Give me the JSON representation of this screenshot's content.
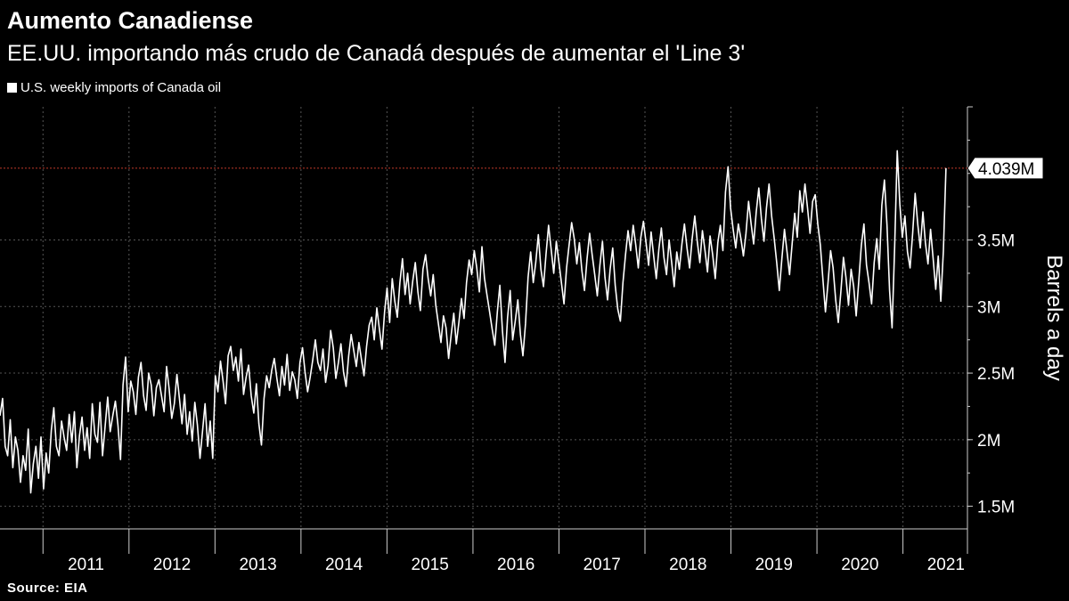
{
  "title": "Aumento Canadiense",
  "subtitle": "EE.UU. importando más crudo de Canadá después de aumentar el 'Line 3'",
  "source": "Source: EIA",
  "colors": {
    "background": "#000000",
    "line": "#ffffff",
    "reference": "#c0392b",
    "grid": "#555555"
  },
  "chart_data": {
    "type": "line",
    "series": [
      {
        "name": "U.S. weekly imports of Canada oil",
        "x_start_year": 2010.5,
        "x_end_year": 2021.5,
        "values": [
          2.18,
          2.31,
          1.95,
          1.88,
          2.15,
          1.79,
          2.02,
          1.92,
          1.68,
          1.88,
          1.77,
          2.08,
          1.6,
          1.82,
          1.95,
          1.71,
          2.02,
          1.63,
          1.9,
          1.75,
          2.07,
          2.24,
          1.95,
          1.88,
          2.14,
          2.02,
          1.92,
          2.19,
          1.98,
          2.21,
          1.79,
          2.03,
          2.17,
          1.92,
          2.09,
          1.86,
          2.27,
          2.04,
          1.98,
          2.28,
          1.88,
          2.1,
          2.32,
          2.06,
          2.18,
          2.29,
          2.11,
          1.85,
          2.41,
          2.62,
          2.21,
          2.44,
          2.36,
          2.19,
          2.47,
          2.58,
          2.33,
          2.22,
          2.5,
          2.41,
          2.18,
          2.39,
          2.45,
          2.33,
          2.21,
          2.55,
          2.38,
          2.16,
          2.27,
          2.49,
          2.31,
          2.12,
          2.34,
          2.04,
          2.21,
          1.99,
          2.28,
          2.11,
          1.86,
          2.06,
          2.27,
          1.95,
          2.14,
          1.86,
          2.48,
          2.36,
          2.59,
          2.44,
          2.27,
          2.63,
          2.7,
          2.52,
          2.62,
          2.44,
          2.68,
          2.34,
          2.47,
          2.56,
          2.33,
          2.2,
          2.42,
          2.12,
          1.96,
          2.31,
          2.48,
          2.39,
          2.52,
          2.61,
          2.46,
          2.33,
          2.55,
          2.41,
          2.64,
          2.37,
          2.51,
          2.45,
          2.31,
          2.58,
          2.69,
          2.51,
          2.36,
          2.47,
          2.6,
          2.75,
          2.58,
          2.52,
          2.68,
          2.43,
          2.56,
          2.82,
          2.69,
          2.46,
          2.58,
          2.72,
          2.51,
          2.4,
          2.63,
          2.79,
          2.67,
          2.55,
          2.73,
          2.6,
          2.48,
          2.7,
          2.86,
          2.92,
          2.75,
          2.99,
          2.83,
          2.68,
          2.96,
          3.14,
          2.88,
          3.21,
          3.04,
          2.92,
          3.18,
          3.36,
          3.09,
          3.25,
          3.02,
          3.19,
          3.33,
          3.11,
          2.97,
          3.28,
          3.39,
          3.21,
          3.08,
          3.24,
          3.01,
          2.87,
          2.73,
          2.93,
          2.84,
          2.61,
          2.79,
          2.95,
          2.72,
          2.88,
          3.06,
          2.91,
          3.18,
          3.35,
          3.24,
          3.42,
          3.29,
          3.11,
          3.45,
          3.21,
          3.08,
          2.96,
          2.83,
          2.71,
          2.96,
          3.16,
          2.82,
          2.58,
          2.92,
          3.12,
          2.75,
          2.89,
          3.05,
          2.79,
          2.63,
          2.87,
          3.22,
          3.41,
          3.18,
          3.33,
          3.54,
          3.28,
          3.15,
          3.39,
          3.61,
          3.43,
          3.25,
          3.49,
          3.34,
          3.18,
          3.02,
          3.29,
          3.46,
          3.63,
          3.51,
          3.32,
          3.48,
          3.27,
          3.12,
          3.36,
          3.55,
          3.39,
          3.24,
          3.08,
          3.31,
          3.49,
          3.22,
          3.05,
          3.28,
          3.44,
          3.16,
          2.98,
          2.89,
          3.18,
          3.39,
          3.57,
          3.42,
          3.61,
          3.46,
          3.29,
          3.52,
          3.64,
          3.48,
          3.31,
          3.56,
          3.38,
          3.21,
          3.43,
          3.59,
          3.37,
          3.24,
          3.5,
          3.33,
          3.15,
          3.41,
          3.28,
          3.47,
          3.62,
          3.44,
          3.29,
          3.51,
          3.68,
          3.49,
          3.33,
          3.57,
          3.42,
          3.26,
          3.53,
          3.39,
          3.21,
          3.48,
          3.61,
          3.42,
          3.86,
          4.05,
          3.74,
          3.58,
          3.44,
          3.62,
          3.51,
          3.38,
          3.55,
          3.79,
          3.62,
          3.47,
          3.71,
          3.89,
          3.66,
          3.49,
          3.74,
          3.92,
          3.68,
          3.51,
          3.33,
          3.12,
          3.36,
          3.58,
          3.41,
          3.24,
          3.47,
          3.7,
          3.52,
          3.87,
          3.71,
          3.92,
          3.74,
          3.55,
          3.79,
          3.84,
          3.62,
          3.46,
          3.21,
          2.96,
          3.18,
          3.42,
          3.29,
          3.05,
          2.88,
          3.11,
          3.37,
          3.22,
          3.01,
          3.28,
          3.15,
          2.93,
          3.19,
          3.46,
          3.62,
          3.31,
          3.18,
          3.02,
          3.33,
          3.51,
          3.28,
          3.76,
          3.95,
          3.61,
          3.12,
          2.84,
          3.45,
          4.17,
          3.77,
          3.52,
          3.68,
          3.41,
          3.29,
          3.55,
          3.85,
          3.62,
          3.44,
          3.71,
          3.48,
          3.32,
          3.58,
          3.36,
          3.13,
          3.38,
          3.04,
          3.42,
          4.04
        ]
      }
    ],
    "x_ticks": [
      "2011",
      "2012",
      "2013",
      "2014",
      "2015",
      "2016",
      "2017",
      "2018",
      "2019",
      "2020",
      "2021"
    ],
    "y_ticks": [
      "1.5M",
      "2M",
      "2.5M",
      "3M",
      "3.5M"
    ],
    "y_tick_values": [
      1.5,
      2.0,
      2.5,
      3.0,
      3.5
    ],
    "ylabel": "Barrels a day",
    "ylim": [
      1.33,
      4.5
    ],
    "xlim": [
      2010.5,
      2021.75
    ],
    "reference_line": {
      "value": 4.039,
      "label": "4.039M"
    },
    "grid": true,
    "legend_position": "top-left"
  }
}
